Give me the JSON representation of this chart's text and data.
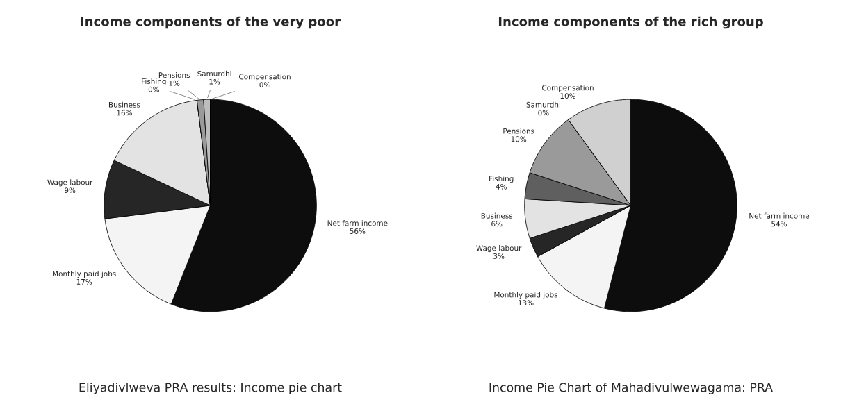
{
  "chart_data": [
    {
      "type": "pie",
      "title": "Income components of the very poor",
      "categories": [
        "Net farm income",
        "Monthly paid jobs",
        "Wage labour",
        "Business",
        "Fishing",
        "Pensions",
        "Samurdhi",
        "Compensation"
      ],
      "values": [
        56,
        17,
        9,
        16,
        0,
        1,
        1,
        0
      ],
      "value_labels": [
        "56%",
        "17%",
        "9%",
        "16%",
        "0%",
        "1%",
        "1%",
        "0%"
      ],
      "colors": [
        "#0d0d0d",
        "#f4f4f4",
        "#262626",
        "#e3e3e3",
        "#5f5f5f",
        "#9a9a9a",
        "#bdbdbd",
        "#d0d0d0"
      ],
      "annotations": [
        "Eliyadivlweva PRA results: Income pie chart"
      ]
    },
    {
      "type": "pie",
      "title": "Income components of the rich group",
      "categories": [
        "Net farm income",
        "Monthly paid jobs",
        "Wage labour",
        "Business",
        "Fishing",
        "Pensions",
        "Samurdhi",
        "Compensation"
      ],
      "values": [
        54,
        13,
        3,
        6,
        4,
        10,
        0,
        10
      ],
      "value_labels": [
        "54%",
        "13%",
        "3%",
        "6%",
        "4%",
        "10%",
        "0%",
        "10%"
      ],
      "colors": [
        "#0d0d0d",
        "#f4f4f4",
        "#262626",
        "#e3e3e3",
        "#5f5f5f",
        "#9a9a9a",
        "#bdbdbd",
        "#d0d0d0"
      ],
      "annotations": [
        "Income Pie Chart of Mahadivulwewagama: PRA"
      ]
    }
  ]
}
